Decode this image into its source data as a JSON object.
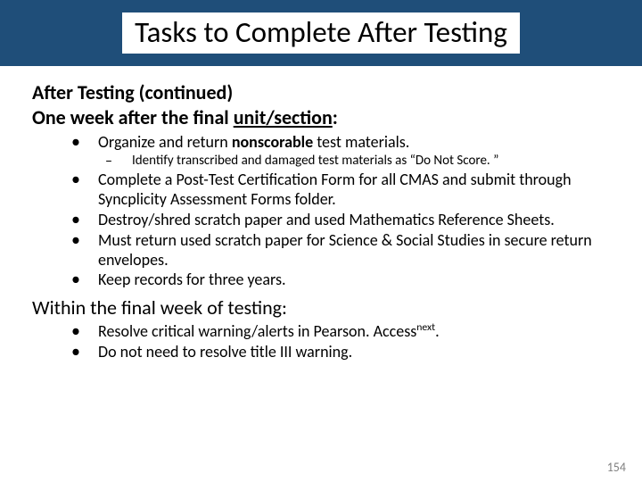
{
  "title": "Tasks to Complete After Testing",
  "heading1_before": "After Testing (continued)\nOne week after the final ",
  "heading1_underlined": "unit/section",
  "heading1_after": ":",
  "list1": {
    "item1_a": "Organize and return ",
    "item1_bold": "nonscorable",
    "item1_b": " test materials.",
    "sub1": "Identify transcribed and damaged test materials as “Do Not Score. ”",
    "item2": "Complete a Post-Test Certification Form for all CMAS and submit through Syncplicity Assessment Forms folder.",
    "item3": "Destroy/shred scratch paper and used Mathematics Reference Sheets.",
    "item4": "Must return used scratch paper for Science & Social Studies in secure return envelopes.",
    "item5": "Keep records for three years."
  },
  "heading2": "Within the final week of testing:",
  "list2": {
    "item1_a": "Resolve critical warning/alerts in Pearson. Access",
    "item1_sup": "next",
    "item1_b": ".",
    "item2": "Do not need to resolve title III warning."
  },
  "slide_number": "154",
  "colors": {
    "title_bar_bg": "#1f4e79",
    "background": "#ffffff",
    "text": "#000000",
    "slide_num": "#7f7f7f"
  },
  "typography": {
    "title_fontsize": 33,
    "subhead_fontsize": 22,
    "bullet_fontsize": 18,
    "subbullet_fontsize": 15,
    "slidenum_fontsize": 14,
    "font_family": "Calibri"
  }
}
